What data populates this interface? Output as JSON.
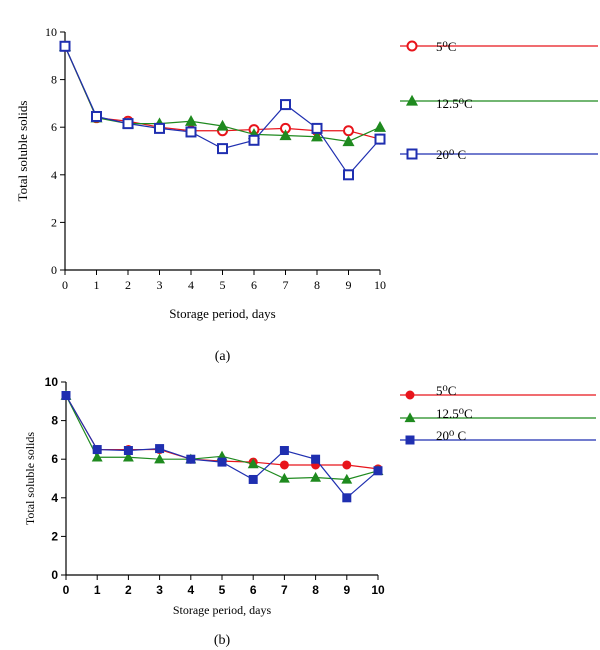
{
  "chart_data": [
    {
      "type": "line",
      "panel_label": "(a)",
      "xlabel": "Storage period, days",
      "ylabel": "Total soluble solids",
      "x": [
        0,
        1,
        2,
        3,
        4,
        5,
        6,
        7,
        8,
        9,
        10
      ],
      "xlim": [
        0,
        10
      ],
      "ylim": [
        0,
        10
      ],
      "yticks": [
        0,
        2,
        4,
        6,
        8,
        10
      ],
      "grid": false,
      "legend_position": "right",
      "series": [
        {
          "name": "5⁰C",
          "color": "#e8141b",
          "marker": "open-circle",
          "values": [
            9.4,
            6.4,
            6.25,
            6.0,
            5.85,
            5.85,
            5.9,
            5.95,
            5.85,
            5.85,
            5.5
          ]
        },
        {
          "name": "12.5⁰C",
          "color": "#1f8a1f",
          "marker": "triangle",
          "values": [
            9.4,
            6.4,
            6.15,
            6.15,
            6.25,
            6.05,
            5.7,
            5.65,
            5.6,
            5.4,
            6.0
          ]
        },
        {
          "name": "20⁰ C",
          "color": "#1f2fb0",
          "marker": "open-square",
          "values": [
            9.4,
            6.45,
            6.15,
            5.95,
            5.8,
            5.1,
            5.45,
            6.95,
            5.95,
            4.0,
            5.5
          ]
        }
      ]
    },
    {
      "type": "line",
      "panel_label": "(b)",
      "xlabel": "Storage period, days",
      "ylabel": "Total soluble solids",
      "x": [
        0,
        1,
        2,
        3,
        4,
        5,
        6,
        7,
        8,
        9,
        10
      ],
      "xlim": [
        0,
        10
      ],
      "ylim": [
        0,
        10
      ],
      "yticks": [
        0,
        2,
        4,
        6,
        8,
        10
      ],
      "grid": false,
      "legend_position": "right",
      "series": [
        {
          "name": "5⁰C",
          "color": "#e8141b",
          "marker": "circle",
          "values": [
            9.3,
            6.5,
            6.5,
            6.5,
            6.0,
            5.9,
            5.85,
            5.7,
            5.7,
            5.7,
            5.5
          ]
        },
        {
          "name": "12.5⁰C",
          "color": "#1f8a1f",
          "marker": "triangle",
          "values": [
            9.3,
            6.1,
            6.1,
            6.0,
            6.0,
            6.15,
            5.75,
            5.0,
            5.05,
            4.95,
            5.4
          ]
        },
        {
          "name": "20⁰ C",
          "color": "#1f2fb0",
          "marker": "square",
          "values": [
            9.3,
            6.5,
            6.45,
            6.55,
            6.0,
            5.85,
            4.95,
            6.45,
            6.0,
            4.0,
            5.4
          ]
        }
      ]
    }
  ]
}
